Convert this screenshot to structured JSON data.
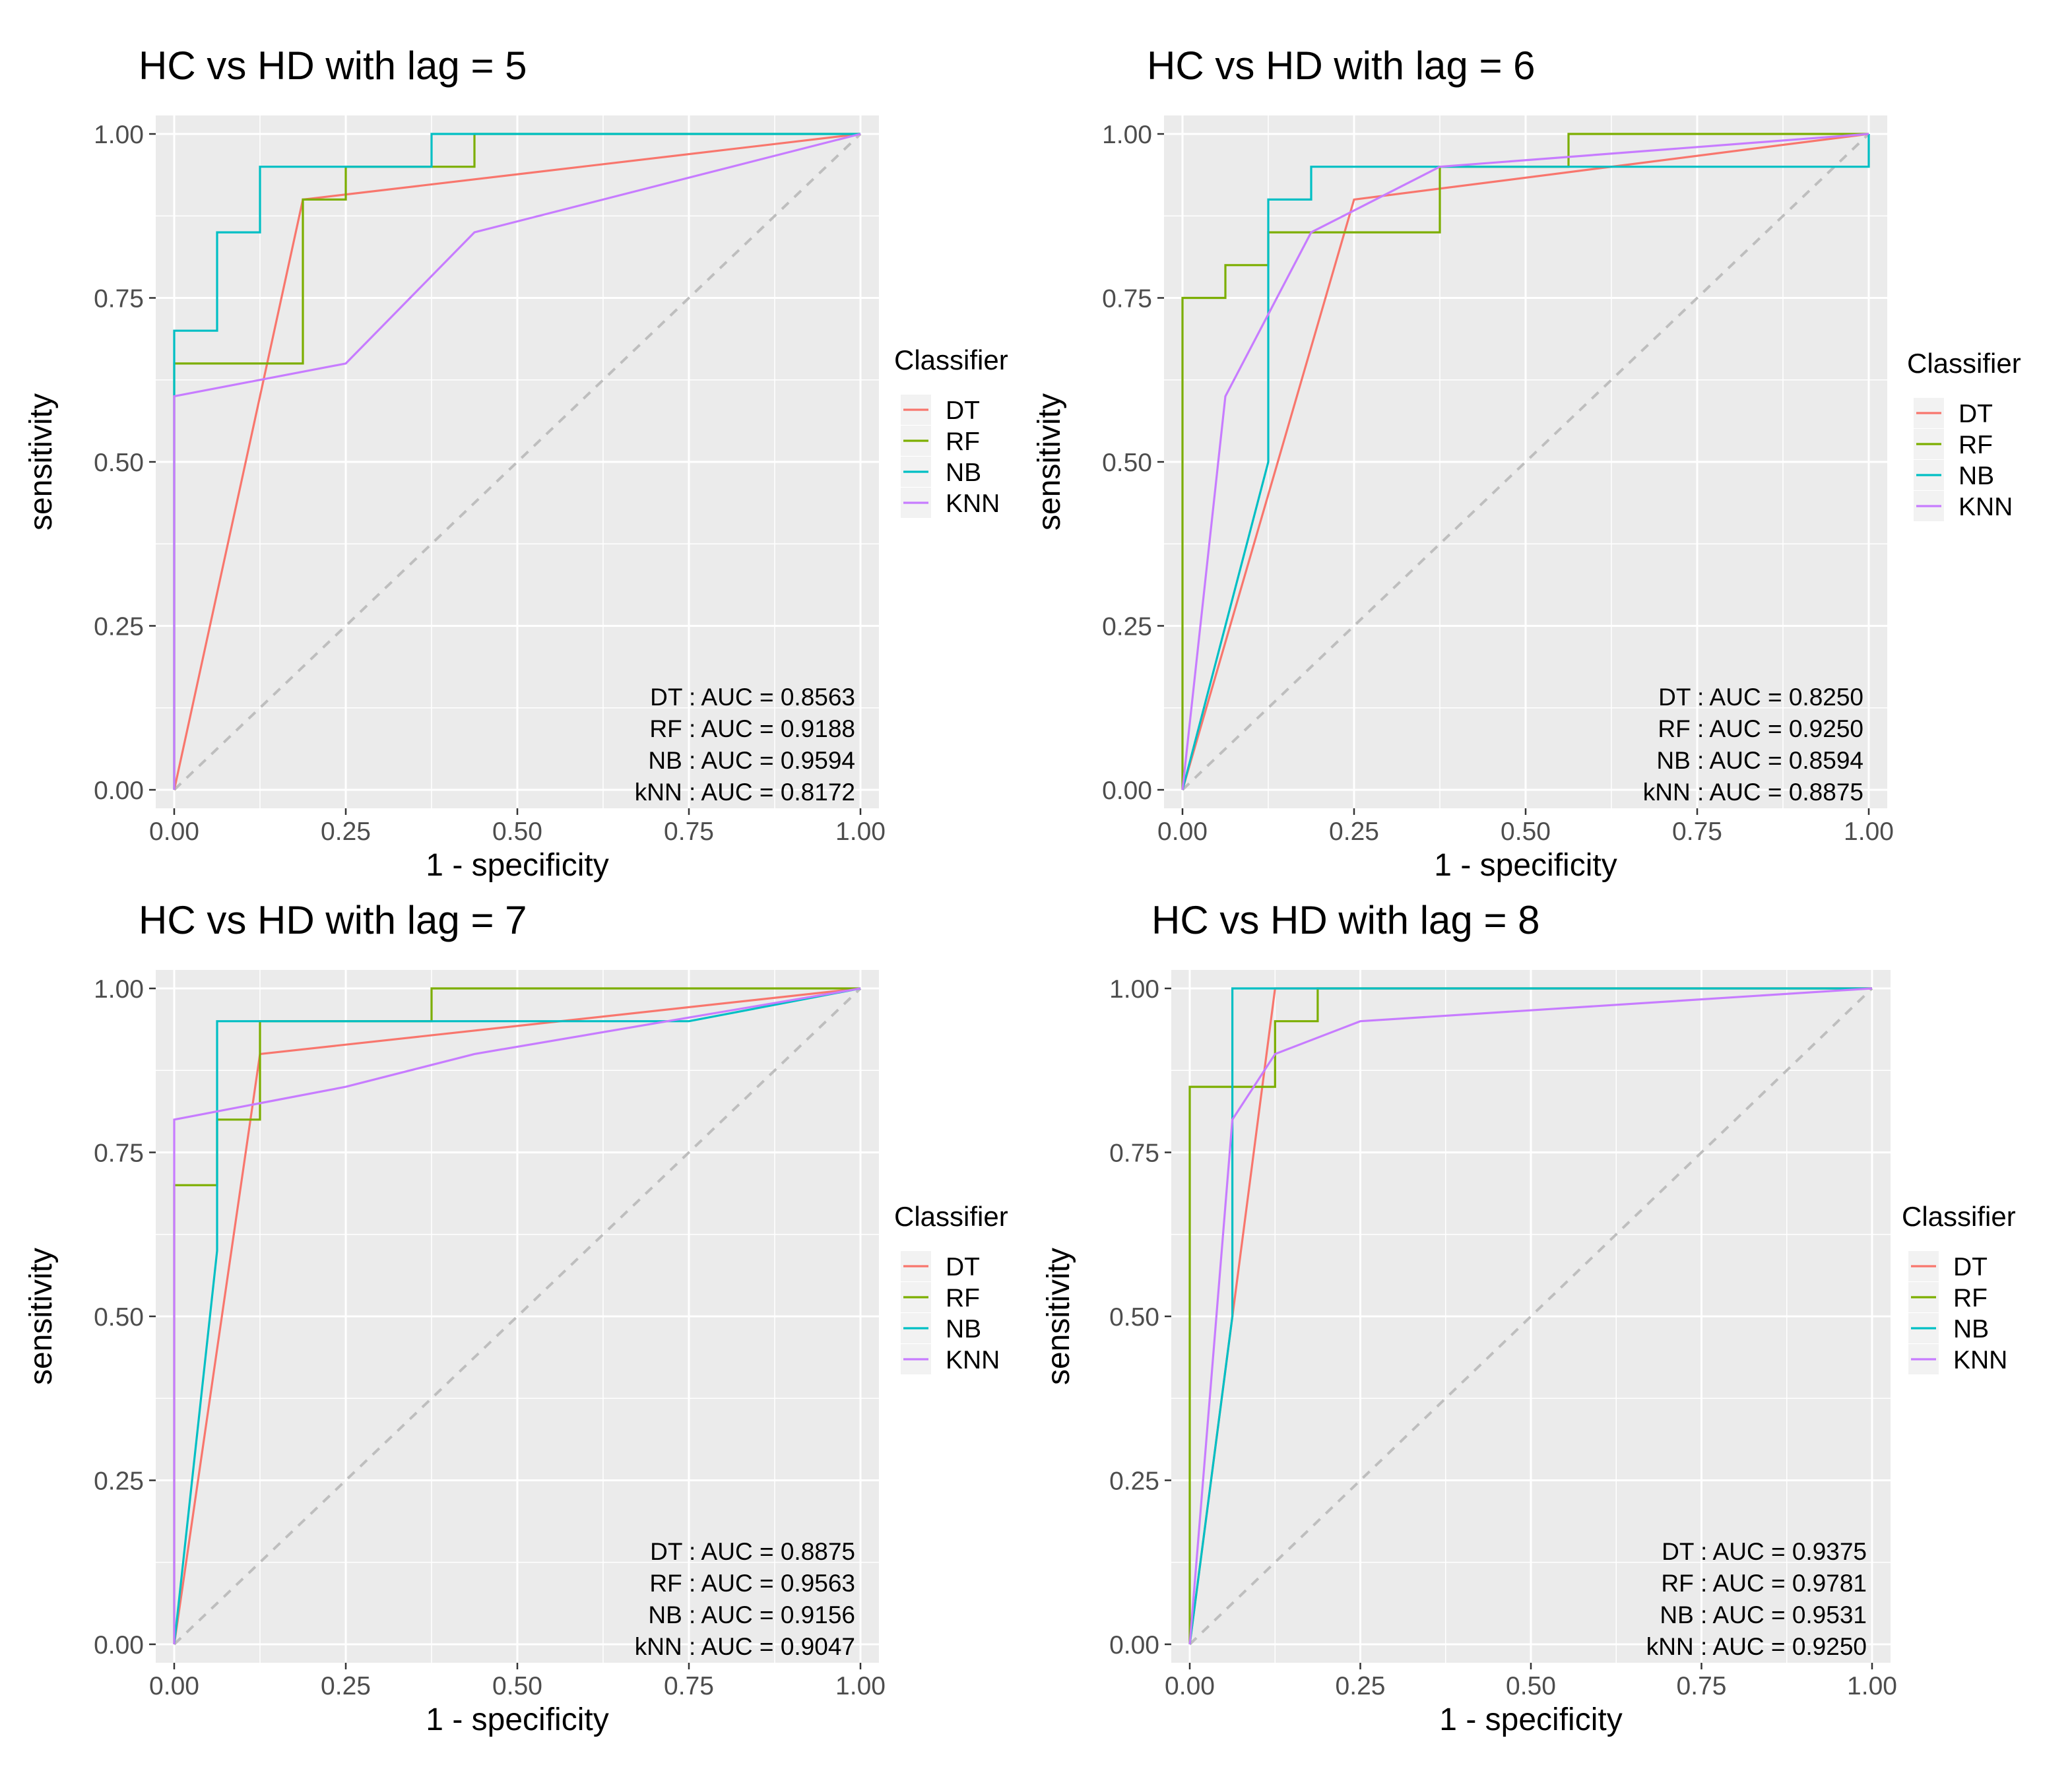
{
  "colors": {
    "DT": "#F8766D",
    "RF": "#7CAE00",
    "NB": "#00BFC4",
    "KNN": "#C77CFF",
    "panel_bg": "#EBEBEB",
    "grid": "#FFFFFF",
    "diagonal": "#BEBEBE"
  },
  "chart_data": [
    {
      "type": "line",
      "title": "HC vs HD with lag = 5",
      "xlabel": "1 - specificity",
      "ylabel": "sensitivity",
      "xlim": [
        0,
        1
      ],
      "ylim": [
        0,
        1
      ],
      "ticks": [
        "0.00",
        "0.25",
        "0.50",
        "0.75",
        "1.00"
      ],
      "legend": {
        "title": "Classifier",
        "entries": [
          "DT",
          "RF",
          "NB",
          "KNN"
        ],
        "position": "right"
      },
      "annotations": [
        "DT : AUC = 0.8563",
        "RF : AUC = 0.9188",
        "NB : AUC = 0.9594",
        "kNN : AUC = 0.8172"
      ],
      "series": [
        {
          "name": "DT",
          "points": [
            [
              0,
              0
            ],
            [
              0.1875,
              0.9
            ],
            [
              1,
              1
            ]
          ]
        },
        {
          "name": "RF",
          "points": [
            [
              0,
              0
            ],
            [
              0,
              0.65
            ],
            [
              0.1875,
              0.65
            ],
            [
              0.1875,
              0.9
            ],
            [
              0.25,
              0.9
            ],
            [
              0.25,
              0.95
            ],
            [
              0.4375,
              0.95
            ],
            [
              0.4375,
              1
            ],
            [
              1,
              1
            ]
          ]
        },
        {
          "name": "NB",
          "points": [
            [
              0,
              0
            ],
            [
              0,
              0.7
            ],
            [
              0.0625,
              0.7
            ],
            [
              0.0625,
              0.85
            ],
            [
              0.125,
              0.85
            ],
            [
              0.125,
              0.95
            ],
            [
              0.375,
              0.95
            ],
            [
              0.375,
              1
            ],
            [
              1,
              1
            ]
          ]
        },
        {
          "name": "KNN",
          "points": [
            [
              0,
              0
            ],
            [
              0,
              0.6
            ],
            [
              0.25,
              0.65
            ],
            [
              0.4375,
              0.85
            ],
            [
              1,
              1
            ]
          ]
        }
      ]
    },
    {
      "type": "line",
      "title": "HC vs HD with lag = 6",
      "xlabel": "1 - specificity",
      "ylabel": "sensitivity",
      "xlim": [
        0,
        1
      ],
      "ylim": [
        0,
        1
      ],
      "ticks": [
        "0.00",
        "0.25",
        "0.50",
        "0.75",
        "1.00"
      ],
      "legend": {
        "title": "Classifier",
        "entries": [
          "DT",
          "RF",
          "NB",
          "KNN"
        ],
        "position": "right"
      },
      "annotations": [
        "DT : AUC = 0.8250",
        "RF : AUC = 0.9250",
        "NB : AUC = 0.8594",
        "kNN : AUC = 0.8875"
      ],
      "series": [
        {
          "name": "DT",
          "points": [
            [
              0,
              0
            ],
            [
              0.25,
              0.9
            ],
            [
              1,
              1
            ]
          ]
        },
        {
          "name": "RF",
          "points": [
            [
              0,
              0
            ],
            [
              0,
              0.75
            ],
            [
              0.0625,
              0.75
            ],
            [
              0.0625,
              0.8
            ],
            [
              0.125,
              0.8
            ],
            [
              0.125,
              0.85
            ],
            [
              0.375,
              0.85
            ],
            [
              0.375,
              0.95
            ],
            [
              0.5625,
              0.95
            ],
            [
              0.5625,
              1
            ],
            [
              1,
              1
            ]
          ]
        },
        {
          "name": "NB",
          "points": [
            [
              0,
              0
            ],
            [
              0.125,
              0.5
            ],
            [
              0.125,
              0.9
            ],
            [
              0.1875,
              0.9
            ],
            [
              0.1875,
              0.95
            ],
            [
              1,
              0.95
            ],
            [
              1,
              1
            ]
          ]
        },
        {
          "name": "KNN",
          "points": [
            [
              0,
              0
            ],
            [
              0.0625,
              0.6
            ],
            [
              0.1875,
              0.85
            ],
            [
              0.375,
              0.95
            ],
            [
              1,
              1
            ]
          ]
        }
      ]
    },
    {
      "type": "line",
      "title": "HC vs HD with lag = 7",
      "xlabel": "1 - specificity",
      "ylabel": "sensitivity",
      "xlim": [
        0,
        1
      ],
      "ylim": [
        0,
        1
      ],
      "ticks": [
        "0.00",
        "0.25",
        "0.50",
        "0.75",
        "1.00"
      ],
      "legend": {
        "title": "Classifier",
        "entries": [
          "DT",
          "RF",
          "NB",
          "KNN"
        ],
        "position": "right"
      },
      "annotations": [
        "DT : AUC = 0.8875",
        "RF : AUC = 0.9563",
        "NB : AUC = 0.9156",
        "kNN : AUC = 0.9047"
      ],
      "series": [
        {
          "name": "DT",
          "points": [
            [
              0,
              0
            ],
            [
              0.125,
              0.9
            ],
            [
              1,
              1
            ]
          ]
        },
        {
          "name": "RF",
          "points": [
            [
              0,
              0
            ],
            [
              0,
              0.7
            ],
            [
              0.0625,
              0.7
            ],
            [
              0.0625,
              0.8
            ],
            [
              0.125,
              0.8
            ],
            [
              0.125,
              0.95
            ],
            [
              0.375,
              0.95
            ],
            [
              0.375,
              1
            ],
            [
              1,
              1
            ]
          ]
        },
        {
          "name": "NB",
          "points": [
            [
              0,
              0
            ],
            [
              0.0625,
              0.6
            ],
            [
              0.0625,
              0.95
            ],
            [
              0.75,
              0.95
            ],
            [
              1,
              1
            ]
          ]
        },
        {
          "name": "KNN",
          "points": [
            [
              0,
              0
            ],
            [
              0,
              0.8
            ],
            [
              0.25,
              0.85
            ],
            [
              0.4375,
              0.9
            ],
            [
              1,
              1
            ]
          ]
        }
      ]
    },
    {
      "type": "line",
      "title": "HC vs HD with lag = 8",
      "xlabel": "1 - specificity",
      "ylabel": "sensitivity",
      "xlim": [
        0,
        1
      ],
      "ylim": [
        0,
        1
      ],
      "ticks": [
        "0.00",
        "0.25",
        "0.50",
        "0.75",
        "1.00"
      ],
      "legend": {
        "title": "Classifier",
        "entries": [
          "DT",
          "RF",
          "NB",
          "KNN"
        ],
        "position": "right"
      },
      "annotations": [
        "DT : AUC = 0.9375",
        "RF : AUC = 0.9781",
        "NB : AUC = 0.9531",
        "kNN : AUC = 0.9250"
      ],
      "series": [
        {
          "name": "DT",
          "points": [
            [
              0,
              0
            ],
            [
              0.125,
              1
            ],
            [
              1,
              1
            ]
          ]
        },
        {
          "name": "RF",
          "points": [
            [
              0,
              0
            ],
            [
              0,
              0.85
            ],
            [
              0.125,
              0.85
            ],
            [
              0.125,
              0.95
            ],
            [
              0.1875,
              0.95
            ],
            [
              0.1875,
              1
            ],
            [
              1,
              1
            ]
          ]
        },
        {
          "name": "NB",
          "points": [
            [
              0,
              0
            ],
            [
              0.0625,
              0.5
            ],
            [
              0.0625,
              1
            ],
            [
              1,
              1
            ]
          ]
        },
        {
          "name": "KNN",
          "points": [
            [
              0,
              0
            ],
            [
              0.0625,
              0.8
            ],
            [
              0.125,
              0.9
            ],
            [
              0.25,
              0.95
            ],
            [
              1,
              1
            ]
          ]
        }
      ]
    }
  ]
}
